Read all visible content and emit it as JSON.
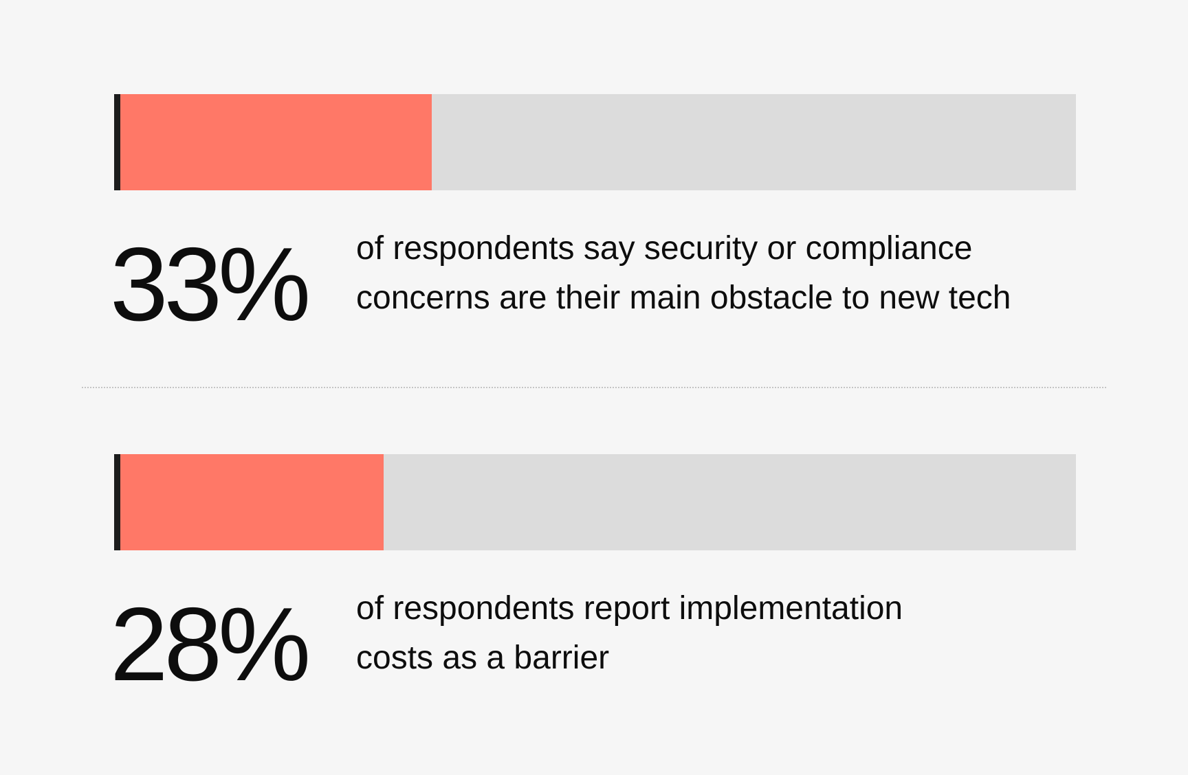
{
  "colors": {
    "background": "#f6f6f6",
    "fill": "#ff7867",
    "track": "#dcdcdc",
    "marker": "#1c1c1c"
  },
  "chart_data": {
    "type": "bar",
    "orientation": "horizontal",
    "xlim": [
      0,
      100
    ],
    "grid": false,
    "legend": "none",
    "categories": [
      "of respondents say security or compliance concerns are their main obstacle to new tech",
      "of respondents report implementation costs as a barrier"
    ],
    "values": [
      33,
      28
    ],
    "value_labels": [
      "33%",
      "28%"
    ]
  },
  "stats": [
    {
      "percent_label": "33%",
      "description_line1": "of respondents say security or compliance",
      "description_line2": "concerns are their main obstacle to new tech"
    },
    {
      "percent_label": "28%",
      "description_line1": "of respondents report implementation",
      "description_line2": "costs as a barrier"
    }
  ]
}
